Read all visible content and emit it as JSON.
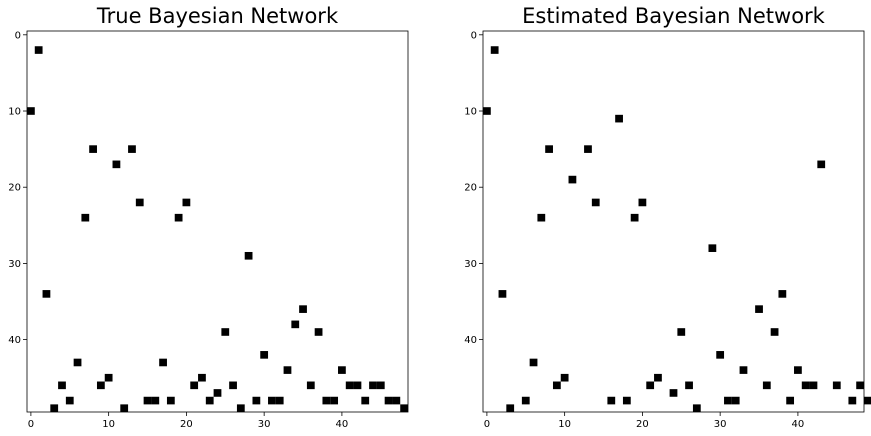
{
  "chart_data": [
    {
      "type": "heatmap",
      "title": "True Bayesian Network",
      "xlabel": "",
      "ylabel": "",
      "xlim": [
        -0.5,
        48.5
      ],
      "ylim": [
        49.5,
        -0.5
      ],
      "x_ticks": [
        0,
        10,
        20,
        30,
        40
      ],
      "y_ticks": [
        0,
        10,
        20,
        30,
        40
      ],
      "grid": false,
      "colors": {
        "on": "#000000",
        "off": "#ffffff"
      },
      "cells": [
        [
          0,
          10
        ],
        [
          1,
          2
        ],
        [
          2,
          34
        ],
        [
          3,
          49
        ],
        [
          4,
          46
        ],
        [
          5,
          48
        ],
        [
          6,
          43
        ],
        [
          7,
          24
        ],
        [
          8,
          15
        ],
        [
          9,
          46
        ],
        [
          10,
          45
        ],
        [
          11,
          17
        ],
        [
          12,
          49
        ],
        [
          13,
          15
        ],
        [
          14,
          22
        ],
        [
          15,
          48
        ],
        [
          16,
          48
        ],
        [
          17,
          43
        ],
        [
          18,
          48
        ],
        [
          19,
          24
        ],
        [
          20,
          22
        ],
        [
          21,
          46
        ],
        [
          22,
          45
        ],
        [
          23,
          48
        ],
        [
          24,
          47
        ],
        [
          25,
          39
        ],
        [
          26,
          46
        ],
        [
          27,
          49
        ],
        [
          28,
          29
        ],
        [
          29,
          48
        ],
        [
          30,
          42
        ],
        [
          31,
          48
        ],
        [
          32,
          48
        ],
        [
          33,
          44
        ],
        [
          34,
          38
        ],
        [
          35,
          36
        ],
        [
          36,
          46
        ],
        [
          37,
          39
        ],
        [
          38,
          48
        ],
        [
          39,
          48
        ],
        [
          40,
          44
        ],
        [
          41,
          46
        ],
        [
          42,
          46
        ],
        [
          43,
          48
        ],
        [
          44,
          46
        ],
        [
          45,
          46
        ],
        [
          46,
          48
        ],
        [
          47,
          48
        ],
        [
          48,
          49
        ]
      ]
    },
    {
      "type": "heatmap",
      "title": "Estimated Bayesian Network",
      "xlabel": "",
      "ylabel": "",
      "xlim": [
        -0.5,
        48.5
      ],
      "ylim": [
        49.5,
        -0.5
      ],
      "x_ticks": [
        0,
        10,
        20,
        30,
        40
      ],
      "y_ticks": [
        0,
        10,
        20,
        30,
        40
      ],
      "grid": false,
      "colors": {
        "on": "#000000",
        "off": "#ffffff"
      },
      "cells": [
        [
          0,
          10
        ],
        [
          1,
          2
        ],
        [
          2,
          34
        ],
        [
          3,
          49
        ],
        [
          5,
          48
        ],
        [
          6,
          43
        ],
        [
          7,
          24
        ],
        [
          8,
          15
        ],
        [
          9,
          46
        ],
        [
          10,
          45
        ],
        [
          11,
          19
        ],
        [
          13,
          15
        ],
        [
          14,
          22
        ],
        [
          16,
          48
        ],
        [
          17,
          11
        ],
        [
          18,
          48
        ],
        [
          19,
          24
        ],
        [
          20,
          22
        ],
        [
          21,
          46
        ],
        [
          22,
          45
        ],
        [
          24,
          47
        ],
        [
          25,
          39
        ],
        [
          26,
          46
        ],
        [
          27,
          49
        ],
        [
          29,
          28
        ],
        [
          30,
          42
        ],
        [
          31,
          48
        ],
        [
          32,
          48
        ],
        [
          33,
          44
        ],
        [
          35,
          36
        ],
        [
          36,
          46
        ],
        [
          37,
          39
        ],
        [
          38,
          34
        ],
        [
          39,
          48
        ],
        [
          40,
          44
        ],
        [
          41,
          46
        ],
        [
          42,
          46
        ],
        [
          43,
          17
        ],
        [
          45,
          46
        ],
        [
          47,
          48
        ],
        [
          48,
          46
        ],
        [
          49,
          48
        ]
      ]
    }
  ]
}
